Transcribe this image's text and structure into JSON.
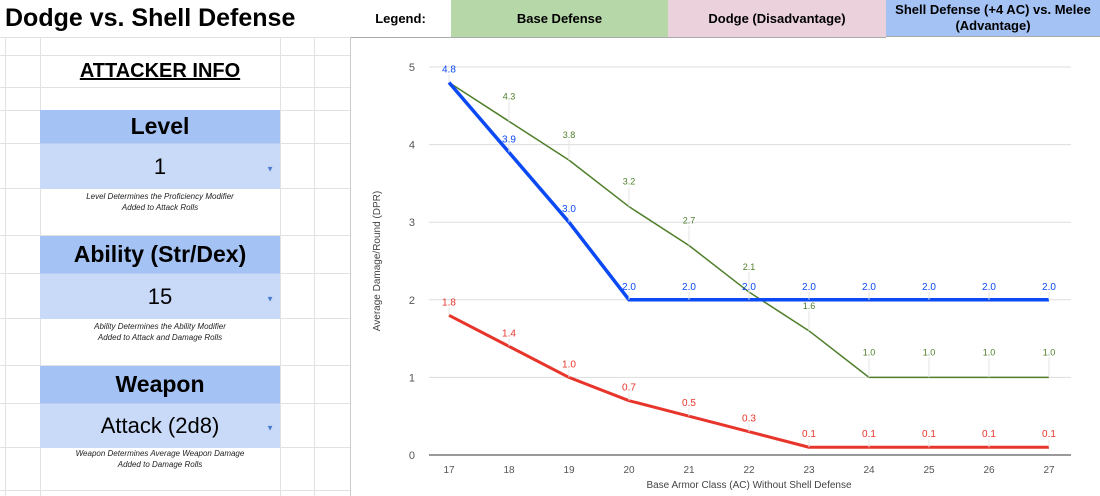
{
  "title": "Dodge vs. Shell Defense",
  "attacker_info": "ATTACKER INFO",
  "fields": [
    {
      "label": "Level",
      "value": "1",
      "note1": "Level Determines the Proficiency Modifier",
      "note2": "Added to Attack Rolls"
    },
    {
      "label": "Ability (Str/Dex)",
      "value": "15",
      "note1": "Ability Determines the Ability Modifier",
      "note2": "Added to Attack and Damage Rolls"
    },
    {
      "label": "Weapon",
      "value": "Attack (2d8)",
      "note1": "Weapon Determines Average Weapon Damage",
      "note2": "Added to Damage Rolls"
    }
  ],
  "legend": {
    "label": "Legend:",
    "items": [
      {
        "text": "Base Defense",
        "color": "#b6d7a8"
      },
      {
        "text": "Dodge (Disadvantage)",
        "color": "#ead1dc"
      },
      {
        "text": "Shell Defense (+4 AC) vs. Melee (Advantage)",
        "color": "#a4c2f4"
      }
    ]
  },
  "chart_data": {
    "type": "line",
    "xlabel": "Base Armor Class (AC) Without Shell Defense",
    "ylabel": "Average Damage/Round (DPR)",
    "x": [
      17,
      18,
      19,
      20,
      21,
      22,
      23,
      24,
      25,
      26,
      27
    ],
    "ylim": [
      0,
      5
    ],
    "yticks": [
      0,
      1,
      2,
      3,
      4,
      5
    ],
    "grid": true,
    "series": [
      {
        "key": "base",
        "color": "#4f7f2a",
        "values": [
          4.8,
          4.3,
          3.8,
          3.2,
          2.7,
          2.1,
          1.6,
          1.0,
          1.0,
          1.0,
          1.0
        ]
      },
      {
        "key": "shell",
        "color": "#0b49f5",
        "values": [
          4.8,
          3.9,
          3.0,
          2.0,
          2.0,
          2.0,
          2.0,
          2.0,
          2.0,
          2.0,
          2.0
        ]
      },
      {
        "key": "dodge",
        "color": "#e8352b",
        "values": [
          1.8,
          1.4,
          1.0,
          0.7,
          0.5,
          0.3,
          0.1,
          0.1,
          0.1,
          0.1,
          0.1
        ]
      }
    ]
  }
}
